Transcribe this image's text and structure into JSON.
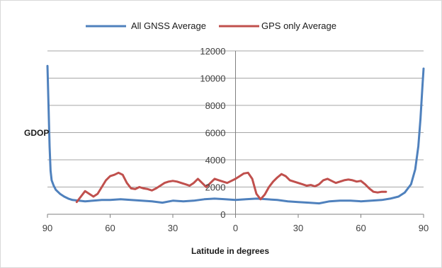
{
  "chart_data": {
    "type": "line",
    "title": "",
    "xlabel": "Latitude in degrees",
    "ylabel": "GDOP",
    "x_tick_labels": [
      "90",
      "60",
      "30",
      "0",
      "30",
      "60",
      "90"
    ],
    "x_tick_values": [
      -90,
      -60,
      -30,
      0,
      30,
      60,
      90
    ],
    "xlim": [
      -90,
      90
    ],
    "y_tick_labels": [
      "0",
      "2000",
      "4000",
      "6000",
      "8000",
      "10000",
      "12000"
    ],
    "y_tick_values": [
      0,
      2000,
      4000,
      6000,
      8000,
      10000,
      12000
    ],
    "ylim": [
      0,
      12000
    ],
    "grid": "horizontal",
    "legend_position": "top",
    "series": [
      {
        "name": "All GNSS Average",
        "color": "#4f81bd",
        "points": [
          [
            -90,
            10900
          ],
          [
            -89.5,
            8000
          ],
          [
            -89,
            5000
          ],
          [
            -88.5,
            3200
          ],
          [
            -88,
            2500
          ],
          [
            -87,
            2100
          ],
          [
            -86,
            1800
          ],
          [
            -84,
            1500
          ],
          [
            -82,
            1300
          ],
          [
            -80,
            1150
          ],
          [
            -78,
            1050
          ],
          [
            -75,
            1000
          ],
          [
            -72,
            950
          ],
          [
            -68,
            1000
          ],
          [
            -64,
            1050
          ],
          [
            -60,
            1050
          ],
          [
            -55,
            1100
          ],
          [
            -50,
            1050
          ],
          [
            -45,
            1000
          ],
          [
            -40,
            950
          ],
          [
            -35,
            850
          ],
          [
            -30,
            1000
          ],
          [
            -25,
            950
          ],
          [
            -20,
            1000
          ],
          [
            -15,
            1100
          ],
          [
            -10,
            1150
          ],
          [
            -5,
            1100
          ],
          [
            0,
            1050
          ],
          [
            5,
            1100
          ],
          [
            10,
            1150
          ],
          [
            15,
            1100
          ],
          [
            20,
            1050
          ],
          [
            25,
            950
          ],
          [
            30,
            900
          ],
          [
            35,
            850
          ],
          [
            40,
            800
          ],
          [
            45,
            950
          ],
          [
            50,
            1000
          ],
          [
            55,
            1000
          ],
          [
            60,
            950
          ],
          [
            65,
            1000
          ],
          [
            70,
            1050
          ],
          [
            74,
            1150
          ],
          [
            78,
            1300
          ],
          [
            81,
            1600
          ],
          [
            84,
            2200
          ],
          [
            86,
            3300
          ],
          [
            87.5,
            5000
          ],
          [
            88.5,
            7000
          ],
          [
            89.5,
            9500
          ],
          [
            90,
            10700
          ]
        ]
      },
      {
        "name": "GPS only Average",
        "color": "#c0504d",
        "points": [
          [
            -76,
            900
          ],
          [
            -74,
            1300
          ],
          [
            -72,
            1700
          ],
          [
            -70,
            1500
          ],
          [
            -68,
            1300
          ],
          [
            -66,
            1500
          ],
          [
            -64,
            2000
          ],
          [
            -62,
            2500
          ],
          [
            -60,
            2800
          ],
          [
            -58,
            2900
          ],
          [
            -56,
            3050
          ],
          [
            -54,
            2900
          ],
          [
            -52,
            2300
          ],
          [
            -50,
            1900
          ],
          [
            -48,
            1850
          ],
          [
            -46,
            2000
          ],
          [
            -44,
            1900
          ],
          [
            -42,
            1850
          ],
          [
            -40,
            1750
          ],
          [
            -38,
            1900
          ],
          [
            -36,
            2100
          ],
          [
            -34,
            2300
          ],
          [
            -32,
            2400
          ],
          [
            -30,
            2450
          ],
          [
            -28,
            2400
          ],
          [
            -26,
            2300
          ],
          [
            -24,
            2200
          ],
          [
            -22,
            2100
          ],
          [
            -20,
            2300
          ],
          [
            -18,
            2600
          ],
          [
            -16,
            2300
          ],
          [
            -14,
            2000
          ],
          [
            -12,
            2300
          ],
          [
            -10,
            2600
          ],
          [
            -8,
            2500
          ],
          [
            -6,
            2400
          ],
          [
            -4,
            2300
          ],
          [
            -2,
            2450
          ],
          [
            0,
            2600
          ],
          [
            2,
            2800
          ],
          [
            4,
            3000
          ],
          [
            6,
            3050
          ],
          [
            8,
            2600
          ],
          [
            10,
            1500
          ],
          [
            12,
            1100
          ],
          [
            14,
            1450
          ],
          [
            16,
            2000
          ],
          [
            18,
            2400
          ],
          [
            20,
            2700
          ],
          [
            22,
            2950
          ],
          [
            24,
            2800
          ],
          [
            26,
            2500
          ],
          [
            28,
            2400
          ],
          [
            30,
            2300
          ],
          [
            32,
            2200
          ],
          [
            34,
            2100
          ],
          [
            36,
            2150
          ],
          [
            38,
            2050
          ],
          [
            40,
            2200
          ],
          [
            42,
            2500
          ],
          [
            44,
            2600
          ],
          [
            46,
            2450
          ],
          [
            48,
            2300
          ],
          [
            50,
            2400
          ],
          [
            52,
            2500
          ],
          [
            54,
            2550
          ],
          [
            56,
            2500
          ],
          [
            58,
            2400
          ],
          [
            60,
            2450
          ],
          [
            62,
            2200
          ],
          [
            64,
            1900
          ],
          [
            66,
            1650
          ],
          [
            68,
            1600
          ],
          [
            70,
            1650
          ],
          [
            72,
            1650
          ]
        ]
      }
    ]
  }
}
